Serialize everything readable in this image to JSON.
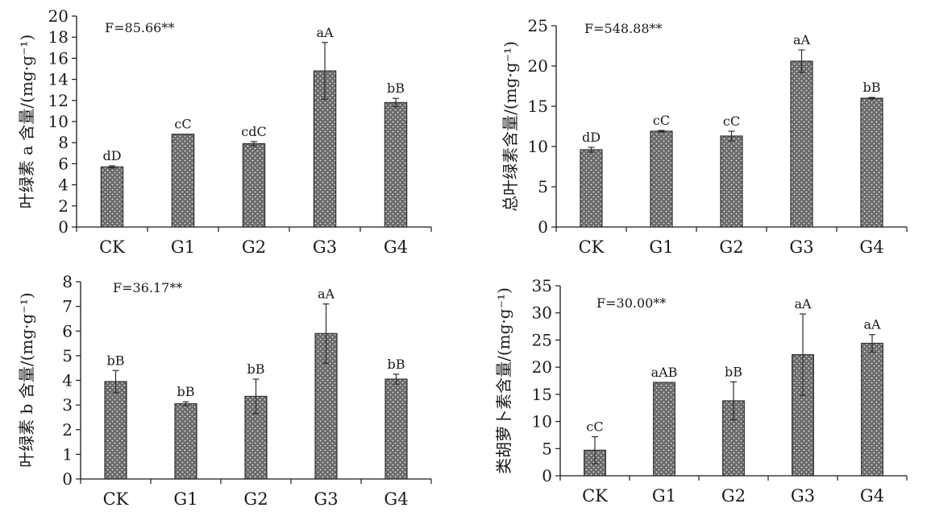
{
  "colors": {
    "bar_fill": "#6b6b6b",
    "bar_edge": "#2e2e2e",
    "dot": "#e8e8e8",
    "axis": "#1a1a1a"
  },
  "chart_data": [
    {
      "type": "bar",
      "categories": [
        "CK",
        "G1",
        "G2",
        "G3",
        "G4"
      ],
      "values": [
        5.7,
        8.8,
        7.9,
        14.8,
        11.8
      ],
      "errors": [
        0.1,
        0.0,
        0.2,
        2.7,
        0.4
      ],
      "labels": [
        "dD",
        "cC",
        "cdC",
        "aA",
        "bB"
      ],
      "ylabel": "叶绿素 a 含量/(mg·g⁻¹)",
      "annotation": "F=85.66**",
      "ylim": [
        0,
        20
      ],
      "yticks": [
        0,
        2,
        4,
        6,
        8,
        10,
        12,
        14,
        16,
        18,
        20
      ],
      "grid": false
    },
    {
      "type": "bar",
      "categories": [
        "CK",
        "G1",
        "G2",
        "G3",
        "G4"
      ],
      "values": [
        9.6,
        11.9,
        11.3,
        20.6,
        16.0
      ],
      "errors": [
        0.3,
        0.1,
        0.6,
        1.4,
        0.1
      ],
      "labels": [
        "dD",
        "cC",
        "cC",
        "aA",
        "bB"
      ],
      "ylabel": "总叶绿素含量/(mg·g⁻¹)",
      "annotation": "F=548.88**",
      "ylim": [
        0,
        25
      ],
      "yticks": [
        0,
        5,
        10,
        15,
        20,
        25
      ],
      "grid": false
    },
    {
      "type": "bar",
      "categories": [
        "CK",
        "G1",
        "G2",
        "G3",
        "G4"
      ],
      "values": [
        3.95,
        3.05,
        3.35,
        5.9,
        4.05
      ],
      "errors": [
        0.45,
        0.08,
        0.7,
        1.2,
        0.2
      ],
      "labels": [
        "bB",
        "bB",
        "bB",
        "aA",
        "bB"
      ],
      "ylabel": "叶绿素 b 含量/(mg·g⁻¹)",
      "annotation": "F=36.17**",
      "ylim": [
        0,
        8
      ],
      "yticks": [
        0,
        1,
        2,
        3,
        4,
        5,
        6,
        7,
        8
      ],
      "grid": false
    },
    {
      "type": "bar",
      "categories": [
        "CK",
        "G1",
        "G2",
        "G3",
        "G4"
      ],
      "values": [
        4.7,
        17.2,
        13.8,
        22.3,
        24.4
      ],
      "errors": [
        2.5,
        0.0,
        3.5,
        7.5,
        1.6
      ],
      "labels": [
        "cC",
        "aAB",
        "bB",
        "aA",
        "aA"
      ],
      "ylabel": "类胡萝卜素含量/(mg·g⁻¹)",
      "annotation": "F=30.00**",
      "ylim": [
        0,
        35
      ],
      "yticks": [
        0,
        5,
        10,
        15,
        20,
        25,
        30,
        35
      ],
      "grid": false
    }
  ]
}
